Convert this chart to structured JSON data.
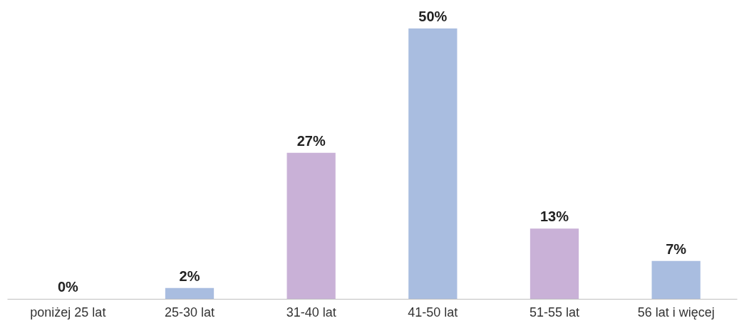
{
  "chart_data": {
    "type": "bar",
    "categories": [
      "poniżej 25 lat",
      "25-30 lat",
      "31-40 lat",
      "41-50 lat",
      "51-55 lat",
      "56 lat i więcej"
    ],
    "values": [
      0,
      2,
      27,
      50,
      13,
      7
    ],
    "value_labels": [
      "0%",
      "2%",
      "27%",
      "50%",
      "13%",
      "7%"
    ],
    "colors": [
      "#a9bde0",
      "#a9bde0",
      "#c9b1d7",
      "#a9bde0",
      "#c9b1d7",
      "#a9bde0"
    ],
    "grid": false
  }
}
